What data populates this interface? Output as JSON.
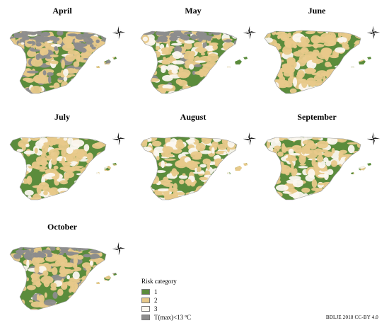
{
  "panels": [
    {
      "title": "April",
      "scheme": [
        0.58,
        0.26,
        0.05,
        0.11
      ]
    },
    {
      "title": "May",
      "scheme": [
        0.55,
        0.3,
        0.12,
        0.03
      ]
    },
    {
      "title": "June",
      "scheme": [
        0.35,
        0.55,
        0.1,
        0.0
      ]
    },
    {
      "title": "July",
      "scheme": [
        0.42,
        0.38,
        0.2,
        0.0
      ]
    },
    {
      "title": "August",
      "scheme": [
        0.5,
        0.33,
        0.17,
        0.0
      ]
    },
    {
      "title": "September",
      "scheme": [
        0.68,
        0.2,
        0.12,
        0.0
      ]
    },
    {
      "title": "October",
      "scheme": [
        0.52,
        0.38,
        0.03,
        0.07
      ]
    }
  ],
  "legend": {
    "title": "Risk category",
    "items": [
      {
        "label": "1",
        "color": "#5b8c3c"
      },
      {
        "label": "2",
        "color": "#e8c98a"
      },
      {
        "label": "3",
        "color": "#fbf7ef"
      },
      {
        "label": "T(max)<13 ºC",
        "color": "#8d8d8d"
      }
    ]
  },
  "credit": "BDLJE 2018 CC-BY 4.0"
}
